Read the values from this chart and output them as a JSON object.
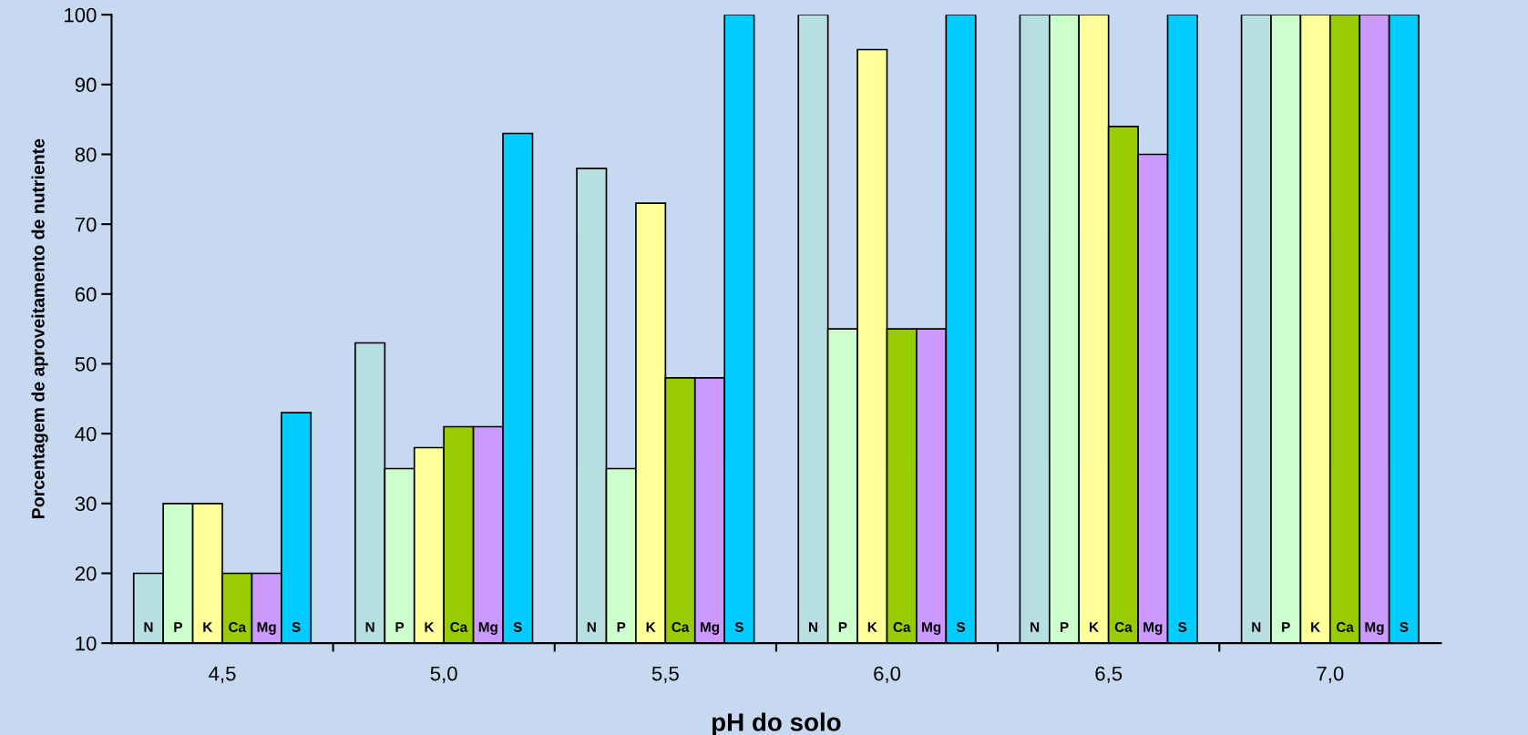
{
  "chart_data": {
    "type": "bar",
    "xlabel": "pH do solo",
    "ylabel": "Porcentagem de aproveitamento de nutriente",
    "categories": [
      "4,5",
      "5,0",
      "5,5",
      "6,0",
      "6,5",
      "7,0"
    ],
    "series": [
      {
        "name": "N",
        "color": "#b7dee0",
        "values": [
          20,
          53,
          78,
          100,
          100,
          100
        ]
      },
      {
        "name": "P",
        "color": "#ccffcc",
        "values": [
          30,
          35,
          35,
          55,
          100,
          100
        ]
      },
      {
        "name": "K",
        "color": "#ffff99",
        "values": [
          30,
          38,
          73,
          95,
          100,
          100
        ]
      },
      {
        "name": "Ca",
        "color": "#99cc00",
        "values": [
          20,
          41,
          48,
          55,
          84,
          100
        ]
      },
      {
        "name": "Mg",
        "color": "#cc99ff",
        "values": [
          20,
          41,
          48,
          55,
          80,
          100
        ]
      },
      {
        "name": "S",
        "color": "#00ccff",
        "values": [
          43,
          83,
          100,
          100,
          100,
          100
        ]
      }
    ],
    "ylim": [
      10,
      100
    ],
    "yticks": [
      10,
      20,
      30,
      40,
      50,
      60,
      70,
      80,
      90,
      100
    ],
    "grid": false,
    "legend": false
  }
}
